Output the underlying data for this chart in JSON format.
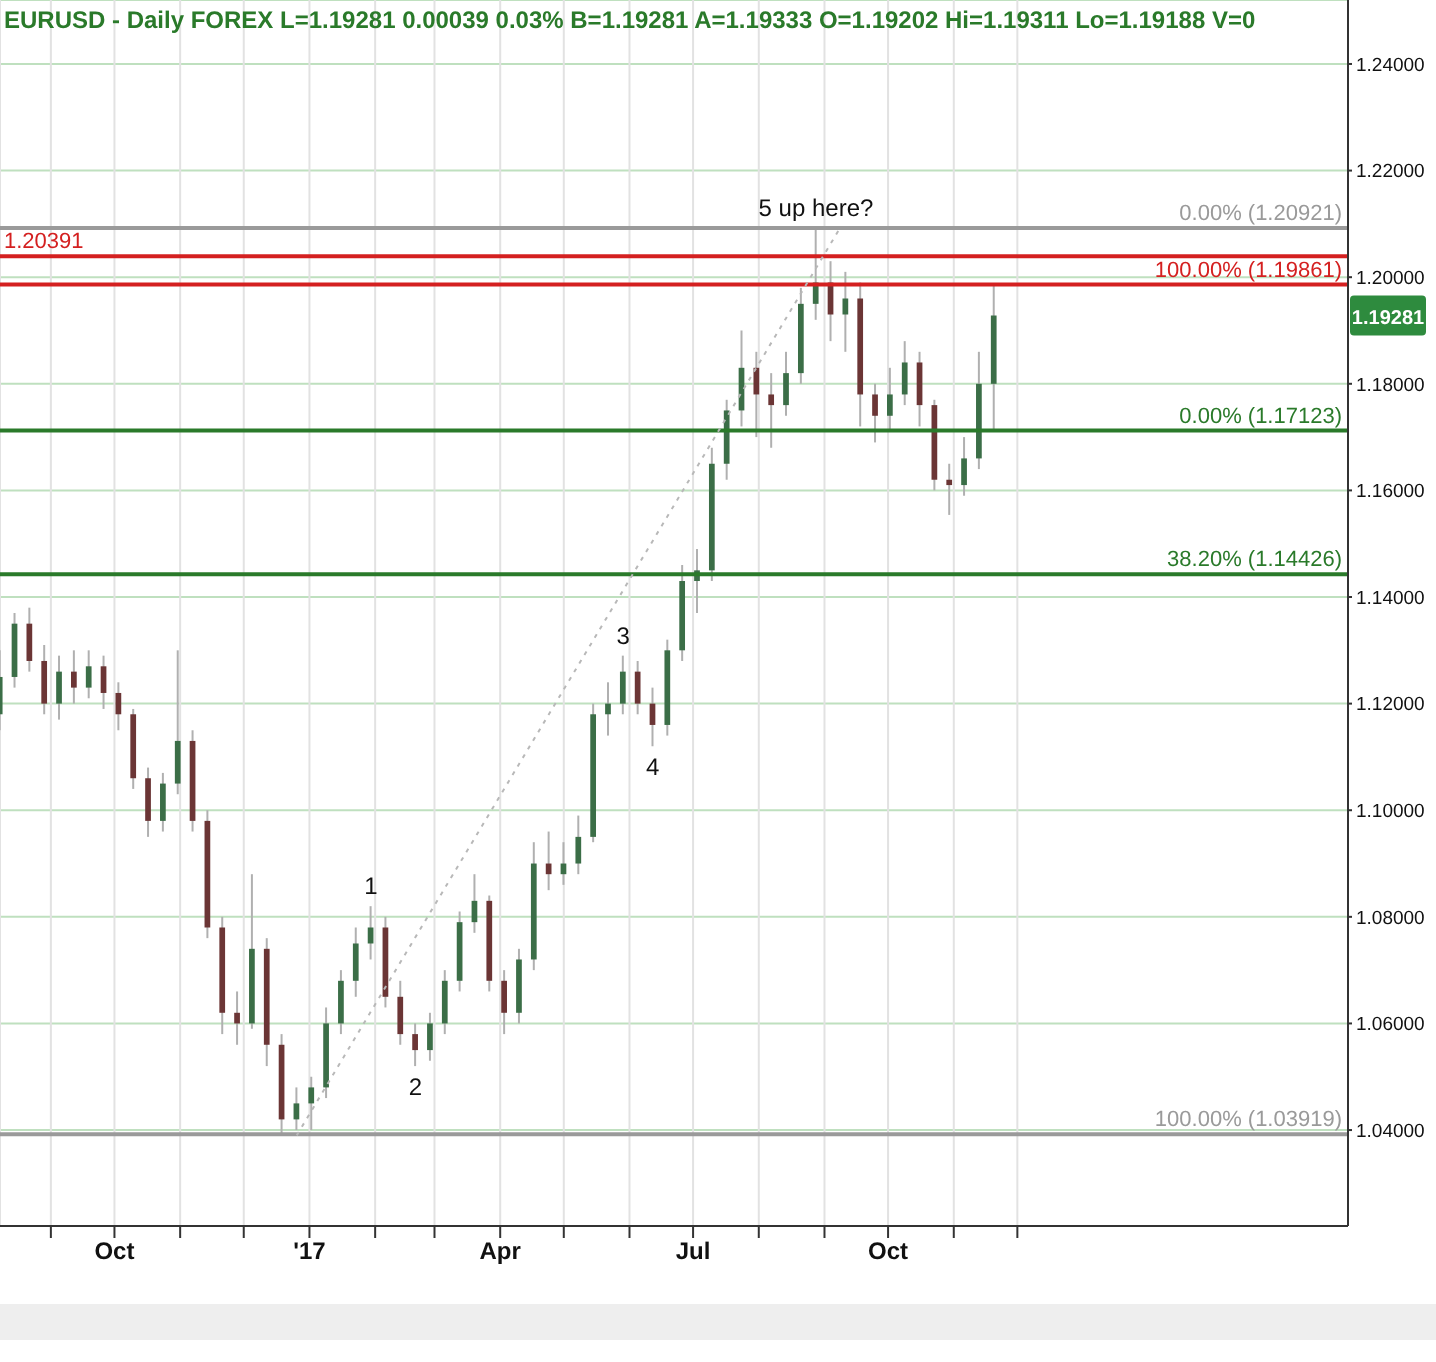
{
  "chart_data": {
    "type": "candlestick",
    "title": "EURUSD - Daily FOREX L=1.19281 0.00039 0.03% B=1.19281 A=1.19333 O=1.19202 Hi=1.19311 Lo=1.19188 V=0",
    "x": [
      "2016-08-08",
      "2016-08-15",
      "2016-08-22",
      "2016-08-29",
      "2016-09-05",
      "2016-09-12",
      "2016-09-19",
      "2016-09-26",
      "2016-10-03",
      "2016-10-10",
      "2016-10-17",
      "2016-10-24",
      "2016-10-31",
      "2016-11-07",
      "2016-11-14",
      "2016-11-21",
      "2016-11-28",
      "2016-12-05",
      "2016-12-12",
      "2016-12-19",
      "2016-12-26",
      "2017-01-02",
      "2017-01-09",
      "2017-01-16",
      "2017-01-23",
      "2017-01-30",
      "2017-02-06",
      "2017-02-13",
      "2017-02-20",
      "2017-02-27",
      "2017-03-06",
      "2017-03-13",
      "2017-03-20",
      "2017-03-27",
      "2017-04-03",
      "2017-04-10",
      "2017-04-17",
      "2017-04-24",
      "2017-05-01",
      "2017-05-08",
      "2017-05-15",
      "2017-05-22",
      "2017-05-29",
      "2017-06-05",
      "2017-06-12",
      "2017-06-19",
      "2017-06-26",
      "2017-07-03",
      "2017-07-10",
      "2017-07-17",
      "2017-07-24",
      "2017-07-31",
      "2017-08-07",
      "2017-08-14",
      "2017-08-21",
      "2017-08-28",
      "2017-09-04",
      "2017-09-11",
      "2017-09-18",
      "2017-09-25",
      "2017-10-02",
      "2017-10-09",
      "2017-10-16",
      "2017-10-23",
      "2017-10-30",
      "2017-11-06",
      "2017-11-13",
      "2017-11-20"
    ],
    "ohlc": [
      [
        1.118,
        1.13,
        1.115,
        1.125
      ],
      [
        1.125,
        1.137,
        1.123,
        1.135
      ],
      [
        1.135,
        1.138,
        1.126,
        1.128
      ],
      [
        1.128,
        1.131,
        1.118,
        1.12
      ],
      [
        1.12,
        1.129,
        1.117,
        1.126
      ],
      [
        1.126,
        1.13,
        1.12,
        1.123
      ],
      [
        1.123,
        1.13,
        1.121,
        1.127
      ],
      [
        1.127,
        1.129,
        1.119,
        1.122
      ],
      [
        1.122,
        1.124,
        1.115,
        1.118
      ],
      [
        1.118,
        1.119,
        1.104,
        1.106
      ],
      [
        1.106,
        1.108,
        1.095,
        1.098
      ],
      [
        1.098,
        1.107,
        1.096,
        1.105
      ],
      [
        1.105,
        1.13,
        1.103,
        1.113
      ],
      [
        1.113,
        1.115,
        1.096,
        1.098
      ],
      [
        1.098,
        1.1,
        1.076,
        1.078
      ],
      [
        1.078,
        1.08,
        1.058,
        1.062
      ],
      [
        1.062,
        1.066,
        1.056,
        1.06
      ],
      [
        1.06,
        1.088,
        1.059,
        1.074
      ],
      [
        1.074,
        1.076,
        1.052,
        1.056
      ],
      [
        1.056,
        1.058,
        1.03919,
        1.042
      ],
      [
        1.042,
        1.048,
        1.04,
        1.045
      ],
      [
        1.045,
        1.05,
        1.04,
        1.048
      ],
      [
        1.048,
        1.063,
        1.046,
        1.06
      ],
      [
        1.06,
        1.07,
        1.058,
        1.068
      ],
      [
        1.068,
        1.078,
        1.065,
        1.075
      ],
      [
        1.075,
        1.082,
        1.072,
        1.078
      ],
      [
        1.078,
        1.08,
        1.063,
        1.065
      ],
      [
        1.065,
        1.068,
        1.056,
        1.058
      ],
      [
        1.058,
        1.06,
        1.052,
        1.055
      ],
      [
        1.055,
        1.062,
        1.053,
        1.06
      ],
      [
        1.06,
        1.07,
        1.058,
        1.068
      ],
      [
        1.068,
        1.081,
        1.066,
        1.079
      ],
      [
        1.079,
        1.088,
        1.077,
        1.083
      ],
      [
        1.083,
        1.084,
        1.066,
        1.068
      ],
      [
        1.068,
        1.07,
        1.058,
        1.062
      ],
      [
        1.062,
        1.074,
        1.06,
        1.072
      ],
      [
        1.072,
        1.094,
        1.07,
        1.09
      ],
      [
        1.09,
        1.096,
        1.085,
        1.088
      ],
      [
        1.088,
        1.094,
        1.086,
        1.09
      ],
      [
        1.09,
        1.099,
        1.088,
        1.095
      ],
      [
        1.095,
        1.12,
        1.094,
        1.118
      ],
      [
        1.118,
        1.124,
        1.114,
        1.12
      ],
      [
        1.12,
        1.129,
        1.118,
        1.126
      ],
      [
        1.126,
        1.128,
        1.118,
        1.12
      ],
      [
        1.12,
        1.123,
        1.112,
        1.116
      ],
      [
        1.116,
        1.132,
        1.114,
        1.13
      ],
      [
        1.13,
        1.146,
        1.128,
        1.143
      ],
      [
        1.143,
        1.149,
        1.137,
        1.145
      ],
      [
        1.145,
        1.168,
        1.143,
        1.165
      ],
      [
        1.165,
        1.177,
        1.162,
        1.175
      ],
      [
        1.175,
        1.19,
        1.172,
        1.183
      ],
      [
        1.183,
        1.186,
        1.17,
        1.178
      ],
      [
        1.178,
        1.182,
        1.168,
        1.176
      ],
      [
        1.176,
        1.186,
        1.174,
        1.182
      ],
      [
        1.182,
        1.198,
        1.18,
        1.195
      ],
      [
        1.195,
        1.20921,
        1.192,
        1.199
      ],
      [
        1.199,
        1.203,
        1.188,
        1.193
      ],
      [
        1.193,
        1.201,
        1.186,
        1.196
      ],
      [
        1.196,
        1.199,
        1.172,
        1.178
      ],
      [
        1.178,
        1.18,
        1.169,
        1.174
      ],
      [
        1.174,
        1.183,
        1.171,
        1.178
      ],
      [
        1.178,
        1.188,
        1.176,
        1.184
      ],
      [
        1.184,
        1.186,
        1.172,
        1.176
      ],
      [
        1.176,
        1.177,
        1.16,
        1.162
      ],
      [
        1.162,
        1.165,
        1.1554,
        1.161
      ],
      [
        1.161,
        1.17,
        1.159,
        1.166
      ],
      [
        1.166,
        1.186,
        1.164,
        1.18
      ],
      [
        1.18,
        1.19861,
        1.17123,
        1.19281
      ]
    ],
    "colors": [
      "#3b6e47",
      "#3b6e47",
      "#6b3535",
      "#6b3535",
      "#3b6e47",
      "#6b3535",
      "#3b6e47",
      "#6b3535",
      "#6b3535",
      "#6b3535",
      "#6b3535",
      "#3b6e47",
      "#3b6e47",
      "#6b3535",
      "#6b3535",
      "#6b3535",
      "#6b3535",
      "#3b6e47",
      "#6b3535",
      "#6b3535",
      "#3b6e47",
      "#3b6e47",
      "#3b6e47",
      "#3b6e47",
      "#3b6e47",
      "#3b6e47",
      "#6b3535",
      "#6b3535",
      "#6b3535",
      "#3b6e47",
      "#3b6e47",
      "#3b6e47",
      "#3b6e47",
      "#6b3535",
      "#6b3535",
      "#3b6e47",
      "#3b6e47",
      "#6b3535",
      "#3b6e47",
      "#3b6e47",
      "#3b6e47",
      "#3b6e47",
      "#3b6e47",
      "#6b3535",
      "#6b3535",
      "#3b6e47",
      "#3b6e47",
      "#3b6e47",
      "#3b6e47",
      "#3b6e47",
      "#3b6e47",
      "#6b3535",
      "#6b3535",
      "#3b6e47",
      "#3b6e47",
      "#3b6e47",
      "#6b3535",
      "#3b6e47",
      "#6b3535",
      "#6b3535",
      "#3b6e47",
      "#3b6e47",
      "#6b3535",
      "#6b3535",
      "#6b3535",
      "#3b6e47",
      "#3b6e47",
      "#3b6e47"
    ],
    "series": [
      {
        "type": "line",
        "x": [
          "2016-12-26",
          "2017-09-08"
        ],
        "values": [
          1.039,
          1.209
        ],
        "color": "#b8b8b8",
        "line_style": "dotted",
        "marker": "none"
      }
    ],
    "xlim": [
      "2016-08-08",
      "2018-05-06"
    ],
    "xticks": [
      {
        "value": "2016-09-01",
        "label": null
      },
      {
        "value": "2016-10-01",
        "label": "Oct"
      },
      {
        "value": "2016-11-01",
        "label": null
      },
      {
        "value": "2016-12-01",
        "label": null
      },
      {
        "value": "2017-01-01",
        "label": "'17"
      },
      {
        "value": "2017-02-01",
        "label": null
      },
      {
        "value": "2017-03-01",
        "label": null
      },
      {
        "value": "2017-04-01",
        "label": "Apr"
      },
      {
        "value": "2017-05-01",
        "label": null
      },
      {
        "value": "2017-06-01",
        "label": null
      },
      {
        "value": "2017-07-01",
        "label": "Jul"
      },
      {
        "value": "2017-08-01",
        "label": null
      },
      {
        "value": "2017-09-01",
        "label": null
      },
      {
        "value": "2017-10-01",
        "label": "Oct"
      },
      {
        "value": "2017-11-01",
        "label": null
      },
      {
        "value": "2017-12-01",
        "label": null
      }
    ],
    "ylim": [
      1.022,
      1.252
    ],
    "yticks": [
      {
        "value": 1.04,
        "label": "1.04000"
      },
      {
        "value": 1.06,
        "label": "1.06000"
      },
      {
        "value": 1.08,
        "label": "1.08000"
      },
      {
        "value": 1.1,
        "label": "1.10000"
      },
      {
        "value": 1.12,
        "label": "1.12000"
      },
      {
        "value": 1.14,
        "label": "1.14000"
      },
      {
        "value": 1.16,
        "label": "1.16000"
      },
      {
        "value": 1.18,
        "label": "1.18000"
      },
      {
        "value": 1.2,
        "label": "1.20000"
      },
      {
        "value": 1.22,
        "label": "1.22000"
      },
      {
        "value": 1.24,
        "label": "1.24000"
      }
    ],
    "grid": true,
    "ref_lines": [
      {
        "axis": "y",
        "value": 1.20391,
        "label": "1.20391",
        "color": "#d42020"
      },
      {
        "axis": "y",
        "value": 1.20921,
        "label": "0.00% (1.20921)",
        "color": "#9a9a9a"
      },
      {
        "axis": "y",
        "value": 1.19861,
        "label": "100.00% (1.19861)",
        "color": "#d42020"
      },
      {
        "axis": "y",
        "value": 1.17123,
        "label": "0.00% (1.17123)",
        "color": "#2a7a2a"
      },
      {
        "axis": "y",
        "value": 1.14426,
        "label": "38.20% (1.14426)",
        "color": "#2a7a2a"
      },
      {
        "axis": "y",
        "value": 1.03919,
        "label": "100.00% (1.03919)",
        "color": "#9a9a9a"
      }
    ],
    "annotations": [
      {
        "text": "5 up here?",
        "x": "2017-08-28",
        "y": 1.20921
      },
      {
        "text": "1",
        "x": "2017-01-30",
        "y": 1.082
      },
      {
        "text": "2",
        "x": "2017-02-20",
        "y": 1.052
      },
      {
        "text": "3",
        "x": "2017-05-29",
        "y": 1.129
      },
      {
        "text": "4",
        "x": "2017-06-12",
        "y": 1.112
      },
      {
        "text": "1.19281",
        "y": 1.19281
      }
    ]
  }
}
